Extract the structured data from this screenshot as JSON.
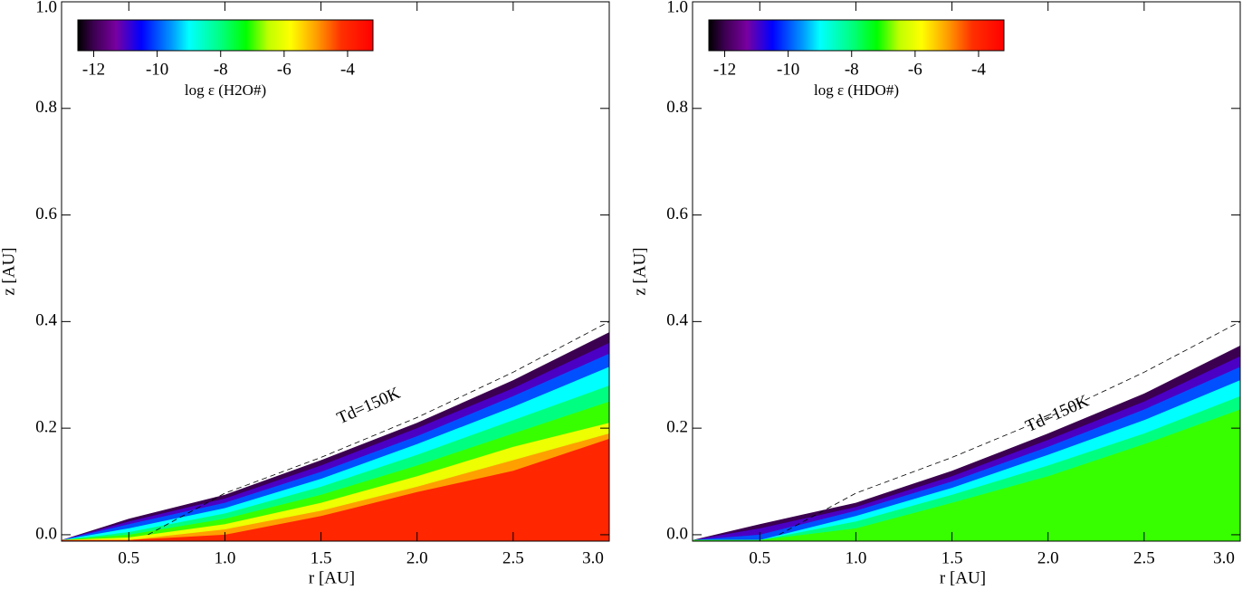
{
  "chart_data": [
    {
      "type": "contour",
      "xlabel": "r [AU]",
      "ylabel": "z [AU]",
      "xlim": [
        0.15,
        3.0
      ],
      "ylim": [
        -0.012,
        1.0
      ],
      "xticks": [
        0.5,
        {
          "value": 1.0,
          "label": "1.0"
        },
        1.5,
        {
          "value": 2.0,
          "label": "2.0"
        },
        2.5,
        {
          "value": 3.0,
          "label": "3.0"
        }
      ],
      "yticks": [
        {
          "value": 0,
          "label": "0.0"
        },
        0.2,
        0.4,
        0.6,
        0.8,
        {
          "value": 1.0,
          "label": "1.0"
        }
      ],
      "colorbar": {
        "label": "log ε (H2O#)",
        "clim": [
          -12.5,
          -3.2
        ],
        "ticks": [
          -12,
          -10,
          -8,
          -6,
          -4
        ]
      },
      "colormap": [
        {
          "value": -12.5,
          "color": "#000000"
        },
        {
          "value": -12,
          "color": "#3c0050"
        },
        {
          "value": -11.3,
          "color": "#7800a0"
        },
        {
          "value": -10.5,
          "color": "#0000ff"
        },
        {
          "value": -9.5,
          "color": "#00a0ff"
        },
        {
          "value": -9,
          "color": "#00ffff"
        },
        {
          "value": -8,
          "color": "#00ff80"
        },
        {
          "value": -7.2,
          "color": "#00ff00"
        },
        {
          "value": -6.5,
          "color": "#c0ff00"
        },
        {
          "value": -5.8,
          "color": "#ffff00"
        },
        {
          "value": -5,
          "color": "#ffa000"
        },
        {
          "value": -4.2,
          "color": "#ff3000"
        },
        {
          "value": -3.2,
          "color": "#ff0000"
        }
      ],
      "x": [
        0.15,
        0.5,
        1.0,
        1.5,
        2.0,
        2.5,
        3.0
      ],
      "levels": [
        {
          "level": -12,
          "y": [
            -0.01,
            0.03,
            0.075,
            0.14,
            0.21,
            0.29,
            0.38
          ]
        },
        {
          "level": -11,
          "y": [
            -0.01,
            0.025,
            0.068,
            0.13,
            0.2,
            0.275,
            0.36
          ]
        },
        {
          "level": -10,
          "y": [
            -0.01,
            0.02,
            0.06,
            0.118,
            0.185,
            0.26,
            0.34
          ]
        },
        {
          "level": -9,
          "y": [
            -0.01,
            0.012,
            0.05,
            0.105,
            0.17,
            0.24,
            0.315
          ]
        },
        {
          "level": -8,
          "y": [
            -0.01,
            0.005,
            0.04,
            0.09,
            0.15,
            0.215,
            0.28
          ]
        },
        {
          "level": -7,
          "y": [
            -0.01,
            0.0,
            0.03,
            0.075,
            0.13,
            0.19,
            0.25
          ]
        },
        {
          "level": -6,
          "y": [
            -0.01,
            -0.005,
            0.02,
            0.06,
            0.11,
            0.165,
            0.21
          ]
        },
        {
          "level": -5,
          "y": [
            -0.01,
            -0.01,
            0.01,
            0.045,
            0.09,
            0.14,
            0.19
          ]
        },
        {
          "level": -4,
          "y": [
            -0.01,
            -0.01,
            0.0,
            0.035,
            0.08,
            0.12,
            0.18
          ]
        }
      ],
      "td_line": {
        "label": "Td=150K",
        "x": [
          0.6,
          1.0,
          1.5,
          2.0,
          2.5,
          3.0
        ],
        "y": [
          0.0,
          0.078,
          0.145,
          0.22,
          0.305,
          0.4
        ],
        "label_x": 1.75,
        "label_y": 0.24
      }
    },
    {
      "type": "contour",
      "xlabel": "r [AU]",
      "ylabel": "z [AU]",
      "xlim": [
        0.15,
        3.0
      ],
      "ylim": [
        -0.012,
        1.0
      ],
      "xticks": [
        0.5,
        {
          "value": 1.0,
          "label": "1.0"
        },
        1.5,
        {
          "value": 2.0,
          "label": "2.0"
        },
        2.5,
        {
          "value": 3.0,
          "label": "3.0"
        }
      ],
      "yticks": [
        {
          "value": 0,
          "label": "0.0"
        },
        0.2,
        0.4,
        0.6,
        0.8,
        {
          "value": 1.0,
          "label": "1.0"
        }
      ],
      "colorbar": {
        "label": "log ε (HDO#)",
        "clim": [
          -12.5,
          -3.2
        ],
        "ticks": [
          -12,
          -10,
          -8,
          -6,
          -4
        ]
      },
      "colormap": [
        {
          "value": -12.5,
          "color": "#000000"
        },
        {
          "value": -12,
          "color": "#3c0050"
        },
        {
          "value": -11.3,
          "color": "#7800a0"
        },
        {
          "value": -10.5,
          "color": "#0000ff"
        },
        {
          "value": -9.5,
          "color": "#00a0ff"
        },
        {
          "value": -9,
          "color": "#00ffff"
        },
        {
          "value": -8,
          "color": "#00ff80"
        },
        {
          "value": -7.2,
          "color": "#00ff00"
        },
        {
          "value": -6.5,
          "color": "#c0ff00"
        },
        {
          "value": -5.8,
          "color": "#ffff00"
        },
        {
          "value": -5,
          "color": "#ffa000"
        },
        {
          "value": -4.2,
          "color": "#ff3000"
        },
        {
          "value": -3.2,
          "color": "#ff0000"
        }
      ],
      "x": [
        0.15,
        0.5,
        1.0,
        1.5,
        2.0,
        2.5,
        3.0
      ],
      "levels": [
        {
          "level": -12,
          "y": [
            -0.01,
            0.02,
            0.06,
            0.12,
            0.19,
            0.265,
            0.355
          ]
        },
        {
          "level": -11,
          "y": [
            -0.01,
            0.012,
            0.052,
            0.11,
            0.178,
            0.25,
            0.335
          ]
        },
        {
          "level": -10,
          "y": [
            -0.01,
            0.0,
            0.045,
            0.1,
            0.165,
            0.235,
            0.315
          ]
        },
        {
          "level": -9,
          "y": [
            -0.01,
            -0.01,
            0.035,
            0.088,
            0.15,
            0.215,
            0.29
          ]
        },
        {
          "level": -8,
          "y": [
            -0.01,
            -0.01,
            0.025,
            0.075,
            0.13,
            0.19,
            0.26
          ]
        },
        {
          "level": -7,
          "y": [
            -0.01,
            -0.01,
            0.012,
            0.06,
            0.11,
            0.17,
            0.235
          ]
        }
      ],
      "td_line": {
        "label": "Td=150K",
        "x": [
          0.6,
          1.0,
          1.5,
          2.0,
          2.5,
          3.0
        ],
        "y": [
          0.0,
          0.078,
          0.145,
          0.22,
          0.305,
          0.4
        ],
        "label_x": 2.05,
        "label_y": 0.225
      }
    }
  ]
}
